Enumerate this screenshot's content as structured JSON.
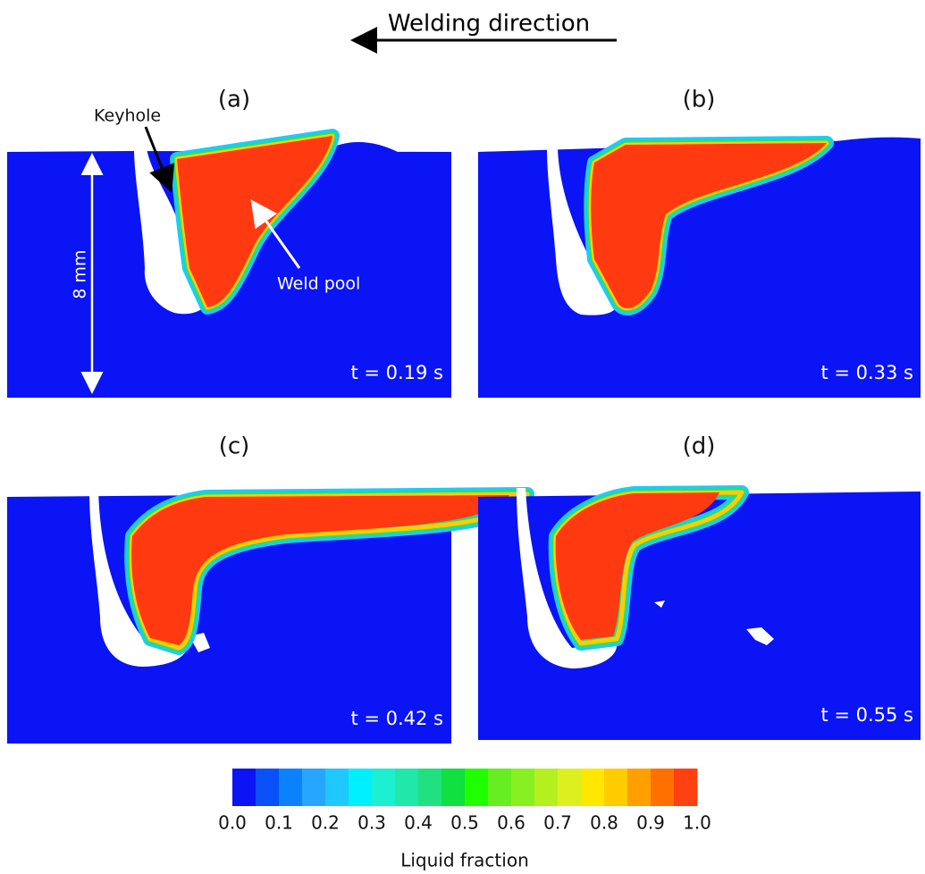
{
  "header": {
    "title": "Welding direction"
  },
  "panels": [
    {
      "label": "(a)",
      "time": "t = 0.19 s"
    },
    {
      "label": "(b)",
      "time": "t = 0.33 s"
    },
    {
      "label": "(c)",
      "time": "t = 0.42 s"
    },
    {
      "label": "(d)",
      "time": "t = 0.55 s"
    }
  ],
  "annotations": {
    "keyhole": "Keyhole",
    "weld_pool": "Weld pool",
    "scale": "8 mm"
  },
  "colorbar": {
    "colors": [
      "#0a14f5",
      "#0a50f8",
      "#0a82ff",
      "#27a6ff",
      "#1fc8ff",
      "#00f0ff",
      "#1cf0d0",
      "#20e8a8",
      "#20e080",
      "#10e040",
      "#20ff00",
      "#66ee22",
      "#88f020",
      "#b4f020",
      "#dcf020",
      "#ffe800",
      "#ffcc00",
      "#ffa000",
      "#ff7000",
      "#ff4010"
    ],
    "ticks": [
      "0.0",
      "0.1",
      "0.2",
      "0.3",
      "0.4",
      "0.5",
      "0.6",
      "0.7",
      "0.8",
      "0.9",
      "1.0"
    ],
    "label": "Liquid fraction"
  }
}
